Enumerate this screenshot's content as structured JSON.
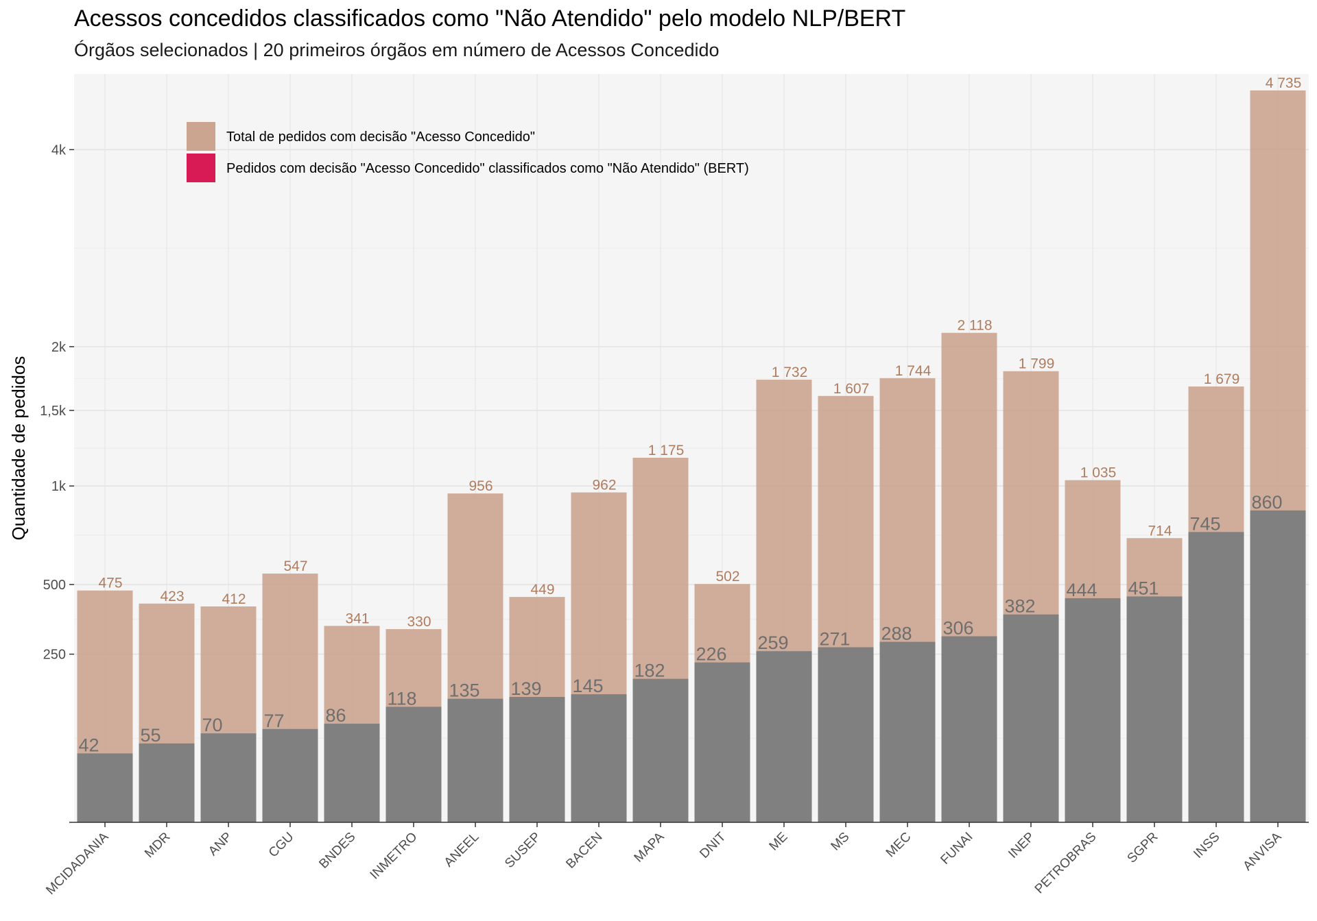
{
  "title": "Acessos concedidos classificados como \"Não Atendido\" pelo modelo NLP/BERT",
  "subtitle": "Órgãos selecionados | 20 primeiros órgãos em número de Acessos Concedido",
  "chart_data": {
    "type": "bar",
    "ylabel": "Quantidade de pedidos",
    "xlabel": "",
    "y_scale": "sqrt",
    "ylim": [
      0,
      4950
    ],
    "y_ticks": [
      250,
      500,
      1000,
      1500,
      2000,
      4000
    ],
    "y_tick_labels": [
      "250",
      "500",
      "1k",
      "1,5k",
      "2k",
      "4k"
    ],
    "grid": true,
    "legend_position": "top-left",
    "categories": [
      "MCIDADANIA",
      "MDR",
      "ANP",
      "CGU",
      "BNDES",
      "INMETRO",
      "ANEEL",
      "SUSEP",
      "BACEN",
      "MAPA",
      "DNIT",
      "ME",
      "MS",
      "MEC",
      "FUNAI",
      "INEP",
      "PETROBRAS",
      "SGPR",
      "INSS",
      "ANVISA"
    ],
    "series": [
      {
        "name": "Total de pedidos com decisão \"Acesso Concedido\"",
        "color": "#c9a08a",
        "label_color": "#b07c5e",
        "values": [
          475,
          423,
          412,
          547,
          341,
          330,
          956,
          449,
          962,
          1175,
          502,
          1732,
          1607,
          1744,
          2118,
          1799,
          1035,
          714,
          1679,
          4735
        ],
        "labels": [
          "475",
          "423",
          "412",
          "547",
          "341",
          "330",
          "956",
          "449",
          "962",
          "1 175",
          "502",
          "1 732",
          "1 607",
          "1 744",
          "2 118",
          "1 799",
          "1 035",
          "714",
          "1 679",
          "4 735"
        ]
      },
      {
        "name": "Pedidos com decisão \"Acesso Concedido\" classificados como \"Não Atendido\" (BERT)",
        "color": "#808080",
        "legend_color": "#d81b54",
        "label_color": "#6e6e6e",
        "values": [
          42,
          55,
          70,
          77,
          86,
          118,
          135,
          139,
          145,
          182,
          226,
          259,
          271,
          288,
          306,
          382,
          444,
          451,
          745,
          860
        ],
        "labels": [
          "42",
          "55",
          "70",
          "77",
          "86",
          "118",
          "135",
          "139",
          "145",
          "182",
          "226",
          "259",
          "271",
          "288",
          "306",
          "382",
          "444",
          "451",
          "745",
          "860"
        ]
      }
    ]
  }
}
